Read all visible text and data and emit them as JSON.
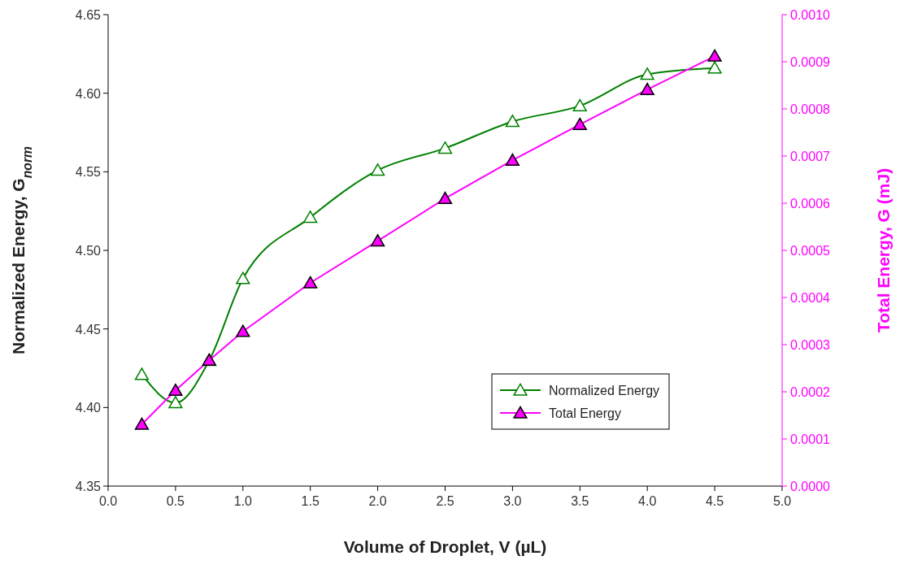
{
  "chart_data": {
    "type": "line",
    "xlabel": "Volume of Droplet, V (µL)",
    "ylabel": "Normalized Energy, G$_{norm}$",
    "y2label": "Total Energy, G (mJ)",
    "x": [
      0.25,
      0.5,
      0.75,
      1.0,
      1.5,
      2.0,
      2.5,
      3.0,
      3.5,
      4.0,
      4.5
    ],
    "series": [
      {
        "name": "Normalized Energy",
        "color": "#008000",
        "values": [
          4.421,
          4.403,
          4.43,
          4.482,
          4.521,
          4.551,
          4.565,
          4.582,
          4.592,
          4.612,
          4.616
        ]
      },
      {
        "name": "Total Energy",
        "color": "#ff00ff",
        "axis": "y2",
        "values": [
          0.000131,
          0.000203,
          0.000267,
          0.000328,
          0.000431,
          0.00052,
          0.00061,
          0.000691,
          0.000767,
          0.000841,
          0.000912
        ]
      }
    ],
    "xlim": [
      0,
      5
    ],
    "xticks": [
      {
        "value": 0,
        "label": "0.0"
      },
      0.5,
      {
        "value": 1,
        "label": "1.0"
      },
      1.5,
      {
        "value": 2,
        "label": "2.0"
      },
      2.5,
      {
        "value": 3,
        "label": "3.0"
      },
      3.5,
      {
        "value": 4,
        "label": "4.0"
      },
      4.5,
      {
        "value": 5,
        "label": "5.0"
      }
    ],
    "ylim": [
      4.35,
      4.65
    ],
    "yticks": [
      4.35,
      {
        "value": 4.4,
        "label": "4.40"
      },
      4.45,
      {
        "value": 4.5,
        "label": "4.50"
      },
      4.55,
      {
        "value": 4.6,
        "label": "4.60"
      },
      4.65
    ],
    "y2lim": [
      0,
      0.001
    ],
    "y2ticks": [
      {
        "value": 0,
        "label": "0.0000"
      },
      {
        "value": 0.0001,
        "label": "0.0001"
      },
      {
        "value": 0.0002,
        "label": "0.0002"
      },
      {
        "value": 0.0003,
        "label": "0.0003"
      },
      {
        "value": 0.0004,
        "label": "0.0004"
      },
      {
        "value": 0.0005,
        "label": "0.0005"
      },
      {
        "value": 0.0006,
        "label": "0.0006"
      },
      {
        "value": 0.0007,
        "label": "0.0007"
      },
      {
        "value": 0.0008,
        "label": "0.0008"
      },
      {
        "value": 0.0009,
        "label": "0.0009"
      },
      {
        "value": 0.001,
        "label": "0.0010"
      }
    ],
    "grid": false,
    "legend": "bottom right",
    "marker": "triangle",
    "line_style": "solid"
  }
}
